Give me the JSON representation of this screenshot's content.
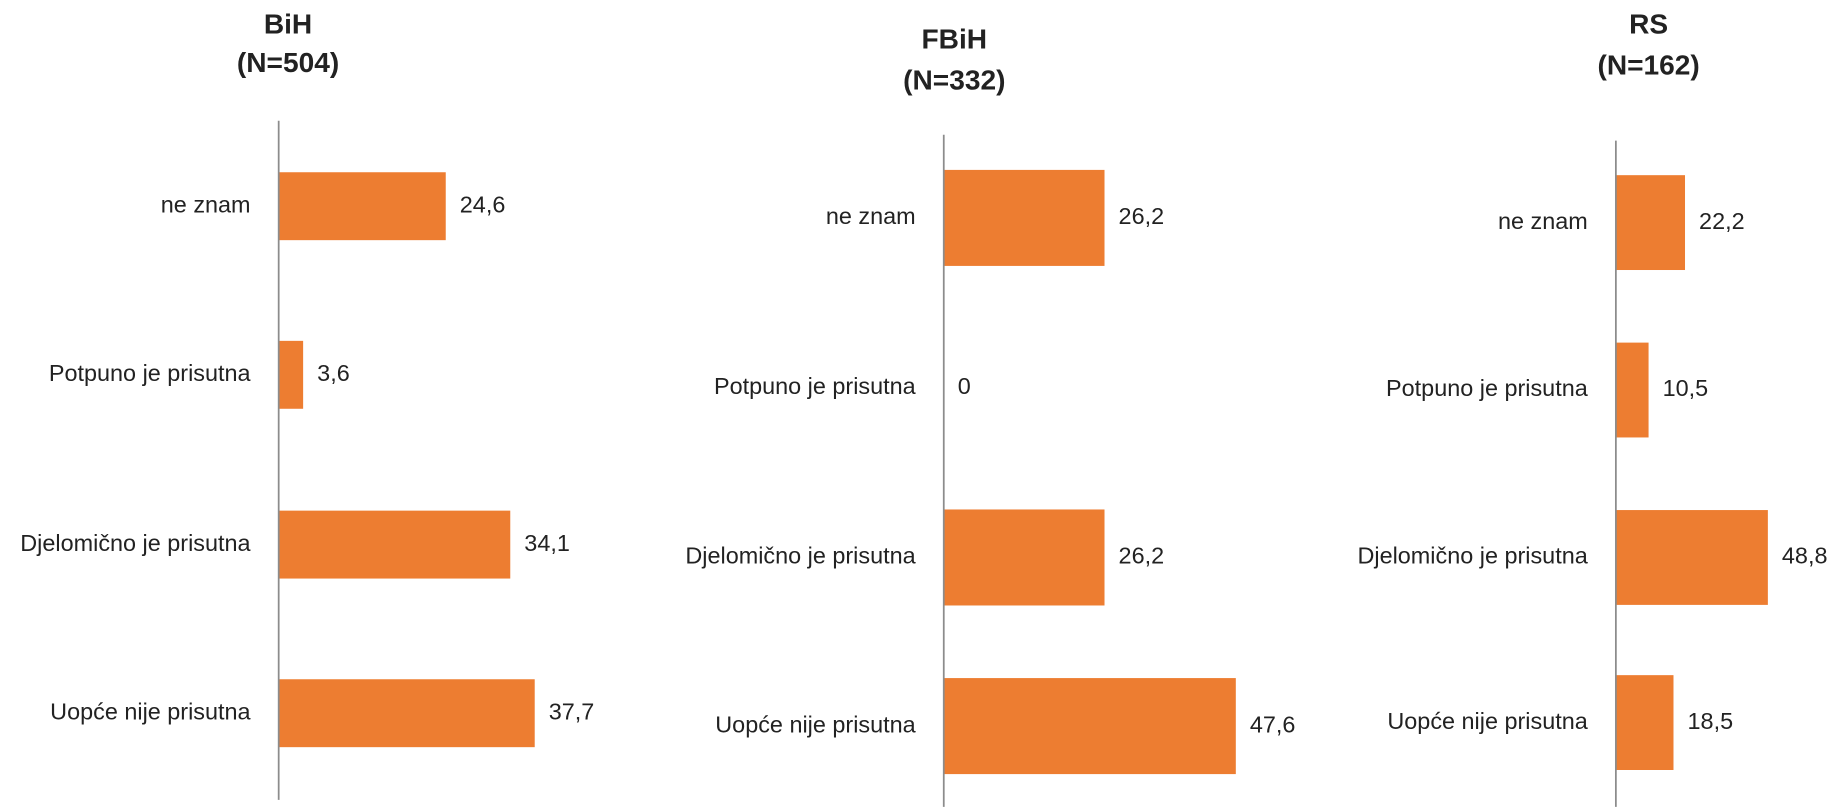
{
  "chart_data": [
    {
      "type": "bar",
      "orientation": "horizontal",
      "title": "BiH",
      "subtitle": "(N=504)",
      "categories": [
        "ne znam",
        "Potpuno je prisutna",
        "Djelomično je prisutna",
        "Uopće nije prisutna"
      ],
      "values": [
        24.6,
        3.6,
        34.1,
        37.7
      ],
      "value_labels": [
        "24,6",
        "3,6",
        "34,1",
        "37,7"
      ],
      "color": "#ed7d31",
      "xlim": [
        0,
        50
      ]
    },
    {
      "type": "bar",
      "orientation": "horizontal",
      "title": "FBiH",
      "subtitle": "(N=332)",
      "categories": [
        "ne znam",
        "Potpuno je prisutna",
        "Djelomično je prisutna",
        "Uopće nije prisutna"
      ],
      "values": [
        26.2,
        0,
        26.2,
        47.6
      ],
      "value_labels": [
        "26,2",
        "0",
        "26,2",
        "47,6"
      ],
      "color": "#ed7d31",
      "xlim": [
        0,
        50
      ]
    },
    {
      "type": "bar",
      "orientation": "horizontal",
      "title": "RS",
      "subtitle": "(N=162)",
      "categories": [
        "ne znam",
        "Potpuno je prisutna",
        "Djelomično je prisutna",
        "Uopće nije prisutna"
      ],
      "values": [
        22.2,
        10.5,
        48.8,
        18.5
      ],
      "value_labels": [
        "22,2",
        "10,5",
        "48,8",
        "18,5"
      ],
      "color": "#ed7d31",
      "xlim": [
        0,
        50
      ]
    }
  ]
}
